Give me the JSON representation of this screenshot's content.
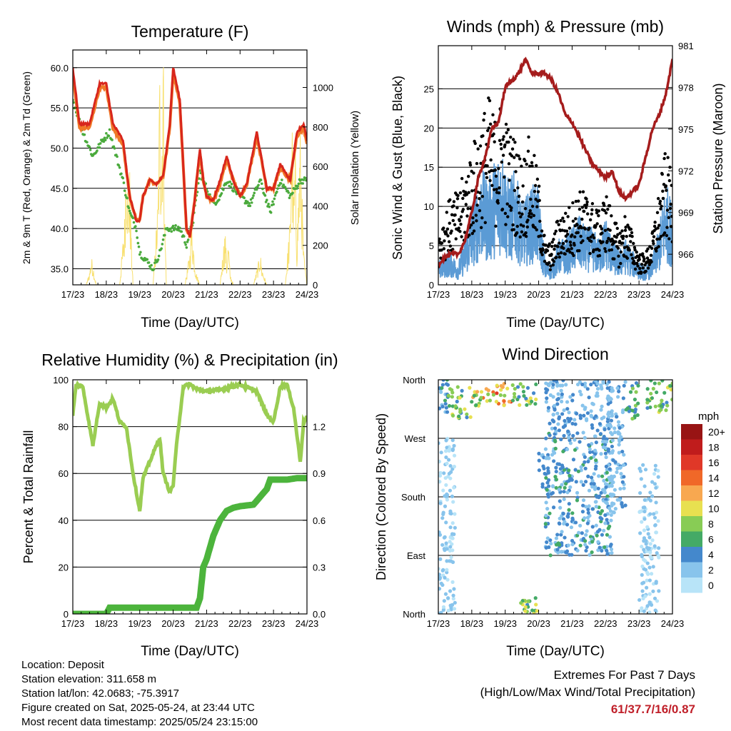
{
  "colors": {
    "temp_2m": "#d8261c",
    "temp_9m": "#f07828",
    "dewpoint": "#4aaa3c",
    "solar": "#f8e070",
    "wind": "#5b9bd5",
    "gust": "#000000",
    "pressure": "#a51c1c",
    "rh": "#9acd52",
    "precip": "#4cb43c"
  },
  "x_ticks": [
    "17/23",
    "18/23",
    "19/23",
    "20/23",
    "21/23",
    "22/23",
    "23/23",
    "24/23"
  ],
  "chart_data": [
    {
      "type": "line",
      "id": "temperature",
      "title": "Temperature (F)",
      "xlabel": "Time (Day/UTC)",
      "ylabel": "2m & 9m T (Red, Orange) & 2m Td (Green)",
      "y2label": "Solar Insolation (Yellow)",
      "ylim": [
        33,
        62.2
      ],
      "y_ticks": [
        "35.0",
        "40.0",
        "45.0",
        "50.0",
        "55.0",
        "60.0"
      ],
      "y2lim": [
        0,
        1190
      ],
      "y2_ticks": [
        "0",
        "200",
        "400",
        "600",
        "800",
        "1000"
      ],
      "grid": true,
      "series": [
        {
          "key": "temp_2m",
          "x": [
            0,
            0.2,
            0.5,
            0.8,
            1.0,
            1.2,
            1.5,
            1.7,
            1.9,
            2.0,
            2.1,
            2.3,
            2.5,
            2.7,
            2.9,
            3.0,
            3.2,
            3.4,
            3.5,
            3.6,
            3.8,
            3.9,
            4.0,
            4.2,
            4.4,
            4.6,
            4.8,
            5.0,
            5.2,
            5.5,
            5.8,
            6.0,
            6.2,
            6.5,
            6.7,
            6.9,
            7.0
          ],
          "y": [
            60,
            53,
            53,
            58,
            58,
            53,
            51,
            44,
            41,
            41,
            44,
            46,
            45.5,
            46.5,
            53,
            60,
            56,
            40,
            39,
            42,
            50,
            46,
            44,
            43.5,
            46,
            49,
            46,
            44,
            45.5,
            52,
            45,
            45,
            48,
            46,
            52,
            53,
            51
          ]
        },
        {
          "key": "temp_9m",
          "x": [
            0,
            0.2,
            0.5,
            0.8,
            1.0,
            1.2,
            1.5,
            1.7,
            1.9,
            2.0,
            2.1,
            2.3,
            2.5,
            2.7,
            2.9,
            3.0,
            3.2,
            3.4,
            3.5,
            3.6,
            3.8,
            3.9,
            4.0,
            4.2,
            4.4,
            4.6,
            4.8,
            5.0,
            5.2,
            5.5,
            5.8,
            6.0,
            6.2,
            6.5,
            6.7,
            6.9,
            7.0
          ],
          "y": [
            59,
            52.5,
            52.5,
            57.5,
            57.5,
            52.5,
            50.5,
            44,
            41,
            41,
            44,
            46,
            45.5,
            46.5,
            52.5,
            59.5,
            55.5,
            40,
            39,
            42,
            49.5,
            46,
            44,
            43.5,
            45.5,
            48.5,
            46,
            44,
            45.5,
            51.5,
            45,
            45,
            47.5,
            46,
            51.5,
            52.5,
            50.5
          ]
        },
        {
          "key": "dewpoint",
          "x": [
            0,
            0.3,
            0.6,
            0.9,
            1.1,
            1.3,
            1.5,
            1.7,
            1.9,
            2.0,
            2.2,
            2.4,
            2.6,
            2.8,
            3.0,
            3.2,
            3.4,
            3.6,
            3.8,
            4.0,
            4.2,
            4.4,
            4.6,
            4.8,
            5.0,
            5.3,
            5.6,
            5.9,
            6.2,
            6.5,
            6.8,
            7.0
          ],
          "y": [
            56,
            52,
            49,
            51,
            52,
            49,
            46,
            42,
            40,
            37,
            36,
            35,
            37,
            40,
            40,
            40,
            38,
            41,
            47,
            45,
            43,
            44,
            46,
            45,
            44,
            43,
            46,
            42,
            46,
            44,
            46,
            46
          ]
        },
        {
          "key": "solar",
          "x": [
            0,
            0.4,
            0.5,
            0.55,
            0.6,
            0.65,
            0.7,
            0.8,
            1.4,
            1.55,
            1.6,
            1.65,
            1.7,
            1.75,
            1.8,
            1.9,
            2.4,
            2.55,
            2.6,
            2.65,
            2.7,
            2.75,
            2.8,
            2.9,
            3.35,
            3.5,
            3.55,
            3.6,
            3.65,
            3.7,
            3.8,
            4.4,
            4.55,
            4.6,
            4.65,
            4.7,
            4.8,
            5.4,
            5.55,
            5.6,
            5.65,
            5.7,
            5.8,
            6.35,
            6.5,
            6.55,
            6.6,
            6.65,
            6.7,
            6.8,
            6.9,
            7.0
          ],
          "y": [
            0,
            0,
            60,
            120,
            100,
            40,
            0,
            0,
            0,
            300,
            700,
            400,
            500,
            200,
            0,
            0,
            0,
            400,
            1000,
            600,
            1150,
            300,
            0,
            0,
            0,
            150,
            300,
            200,
            100,
            50,
            0,
            0,
            250,
            100,
            200,
            50,
            0,
            0,
            100,
            150,
            80,
            50,
            0,
            0,
            300,
            800,
            400,
            600,
            200,
            700,
            150,
            0
          ]
        }
      ]
    },
    {
      "type": "line",
      "id": "winds",
      "title": "Winds (mph) & Pressure (mb)",
      "xlabel": "Time (Day/UTC)",
      "ylabel": "Sonic Wind & Gust (Blue, Black)",
      "y2label": "Station Pressure (Maroon)",
      "ylim": [
        0,
        30.5
      ],
      "y_ticks": [
        "0",
        "5",
        "10",
        "15",
        "20",
        "25"
      ],
      "y2lim": [
        963.8,
        981
      ],
      "y2_ticks": [
        "966",
        "969",
        "972",
        "975",
        "978",
        "981"
      ],
      "grid": true,
      "series": [
        {
          "key": "wind",
          "x": [
            0,
            0.3,
            0.6,
            0.9,
            1.1,
            1.3,
            1.5,
            1.7,
            1.9,
            2.1,
            2.3,
            2.5,
            2.7,
            2.9,
            3.0,
            3.2,
            3.4,
            3.6,
            3.8,
            4.0,
            4.2,
            4.4,
            4.6,
            4.8,
            5.0,
            5.2,
            5.4,
            5.6,
            5.8,
            6.0,
            6.2,
            6.4,
            6.6,
            6.8,
            7.0
          ],
          "y": [
            2,
            3,
            2,
            5,
            8,
            10,
            9,
            11,
            12,
            9,
            10,
            7,
            8,
            9,
            8,
            2,
            2,
            4,
            4,
            5,
            6,
            5,
            5,
            4,
            6,
            4,
            3,
            4,
            3,
            2,
            1.5,
            2.5,
            5,
            9,
            7
          ]
        },
        {
          "key": "gust",
          "x": [
            0,
            0.3,
            0.6,
            0.9,
            1.1,
            1.3,
            1.5,
            1.7,
            1.9,
            2.1,
            2.3,
            2.5,
            2.7,
            2.9,
            3.0,
            3.2,
            3.4,
            3.6,
            3.8,
            4.0,
            4.2,
            4.4,
            4.6,
            4.8,
            5.0,
            5.2,
            5.4,
            5.6,
            5.8,
            6.0,
            6.2,
            6.4,
            6.6,
            6.8,
            7.0
          ],
          "y": [
            5,
            8,
            9,
            12,
            14,
            16,
            18,
            16,
            18,
            15,
            14,
            12,
            14,
            12,
            10,
            4,
            4,
            7,
            7,
            8,
            9,
            9,
            8,
            7,
            9,
            7,
            5,
            7,
            5,
            3,
            3,
            5,
            9,
            13,
            10
          ]
        },
        {
          "key": "pressure",
          "x": [
            0,
            0.2,
            0.4,
            0.6,
            0.8,
            1.0,
            1.2,
            1.4,
            1.6,
            1.8,
            2.0,
            2.2,
            2.4,
            2.6,
            2.8,
            3.0,
            3.2,
            3.4,
            3.6,
            3.8,
            4.0,
            4.2,
            4.4,
            4.6,
            4.8,
            5.0,
            5.2,
            5.4,
            5.6,
            5.8,
            6.0,
            6.2,
            6.4,
            6.6,
            6.8,
            7.0
          ],
          "y": [
            965.3,
            965.8,
            966,
            966,
            967,
            969,
            971.5,
            973,
            975,
            975.5,
            978,
            978.5,
            979,
            980,
            979,
            979,
            979,
            978.5,
            977.5,
            976,
            975.5,
            974.5,
            973.5,
            972.5,
            972,
            971.5,
            972,
            970.5,
            970,
            970.5,
            971,
            973,
            975,
            976,
            977.5,
            980
          ]
        }
      ]
    },
    {
      "type": "line",
      "id": "humidity",
      "title": "Relative Humidity (%) & Precipitation (in)",
      "xlabel": "Time (Day/UTC)",
      "ylabel": "Percent & Total Rainfall",
      "ylim": [
        0,
        100
      ],
      "y_ticks": [
        "0",
        "20",
        "40",
        "60",
        "80",
        "100"
      ],
      "y2lim": [
        0,
        1.5
      ],
      "y2_ticks": [
        "0.0",
        "0.3",
        "0.6",
        "0.9",
        "1.2"
      ],
      "grid": true,
      "series": [
        {
          "key": "rh",
          "x": [
            0,
            0.1,
            0.3,
            0.5,
            0.6,
            0.8,
            1.0,
            1.2,
            1.4,
            1.6,
            1.8,
            2.0,
            2.1,
            2.3,
            2.5,
            2.6,
            2.7,
            2.9,
            3.0,
            3.1,
            3.3,
            3.5,
            3.7,
            4.0,
            4.5,
            5.0,
            5.5,
            5.8,
            6.0,
            6.2,
            6.4,
            6.6,
            6.8,
            6.9,
            7.0
          ],
          "y": [
            85,
            98,
            97,
            80,
            72,
            90,
            88,
            92,
            82,
            80,
            60,
            44,
            58,
            65,
            72,
            75,
            60,
            52,
            55,
            72,
            97,
            98,
            96,
            95,
            96,
            98,
            95,
            85,
            82,
            97,
            98,
            88,
            65,
            82,
            84
          ]
        },
        {
          "key": "precip",
          "x": [
            0,
            1.0,
            1.1,
            2.0,
            3.0,
            3.7,
            3.8,
            3.9,
            4.0,
            4.2,
            4.4,
            4.6,
            4.8,
            5.0,
            5.4,
            5.6,
            5.8,
            5.9,
            6.0,
            6.4,
            6.7,
            6.8,
            7.0
          ],
          "y": [
            0,
            0,
            0.04,
            0.04,
            0.04,
            0.04,
            0.1,
            0.3,
            0.35,
            0.5,
            0.6,
            0.66,
            0.68,
            0.69,
            0.7,
            0.75,
            0.8,
            0.86,
            0.86,
            0.86,
            0.87,
            0.87,
            0.87
          ]
        }
      ]
    },
    {
      "type": "scatter",
      "id": "direction",
      "title": "Wind Direction",
      "xlabel": "Time (Day/UTC)",
      "ylabel": "Direction (Colored By Speed)",
      "ylim": [
        0,
        360
      ],
      "y_ticks": [
        "North",
        "East",
        "South",
        "West",
        "North"
      ],
      "legend": {
        "title": "mph",
        "labels": [
          "0",
          "2",
          "4",
          "6",
          "8",
          "10",
          "12",
          "14",
          "16",
          "18",
          "20+"
        ],
        "colors": [
          "#b8e4f8",
          "#88c4ec",
          "#4488cc",
          "#44aa66",
          "#88cc55",
          "#e8e050",
          "#f8a850",
          "#f06828",
          "#e03828",
          "#c01c1c",
          "#981414"
        ],
        "placement": "right"
      },
      "clusters": [
        {
          "x": [
            0,
            0.3
          ],
          "dir": [
            310,
            360
          ],
          "spd": [
            2,
            6
          ]
        },
        {
          "x": [
            0.3,
            1.0
          ],
          "dir": [
            300,
            350
          ],
          "spd": [
            4,
            10
          ]
        },
        {
          "x": [
            1.0,
            1.6
          ],
          "dir": [
            320,
            350
          ],
          "spd": [
            6,
            14
          ]
        },
        {
          "x": [
            1.6,
            2.2
          ],
          "dir": [
            320,
            355
          ],
          "spd": [
            8,
            16
          ]
        },
        {
          "x": [
            2.2,
            3.0
          ],
          "dir": [
            320,
            355
          ],
          "spd": [
            4,
            10
          ]
        },
        {
          "x": [
            0,
            0.5
          ],
          "dir": [
            0,
            270
          ],
          "spd": [
            0,
            3
          ]
        },
        {
          "x": [
            3.0,
            3.3
          ],
          "dir": [
            190,
            250
          ],
          "spd": [
            2,
            5
          ]
        },
        {
          "x": [
            3.2,
            5.2
          ],
          "dir": [
            90,
            280
          ],
          "spd": [
            1,
            6
          ]
        },
        {
          "x": [
            3.2,
            5.2
          ],
          "dir": [
            280,
            360
          ],
          "spd": [
            1,
            5
          ]
        },
        {
          "x": [
            5.0,
            5.6
          ],
          "dir": [
            150,
            360
          ],
          "spd": [
            1,
            4
          ]
        },
        {
          "x": [
            5.6,
            6.0
          ],
          "dir": [
            300,
            360
          ],
          "spd": [
            3,
            8
          ]
        },
        {
          "x": [
            6.0,
            6.6
          ],
          "dir": [
            0,
            230
          ],
          "spd": [
            0,
            3
          ]
        },
        {
          "x": [
            6.2,
            7.0
          ],
          "dir": [
            310,
            360
          ],
          "spd": [
            4,
            10
          ]
        },
        {
          "x": [
            2.4,
            3.0
          ],
          "dir": [
            0,
            25
          ],
          "spd": [
            4,
            10
          ]
        }
      ]
    }
  ],
  "info": {
    "location": "Location: Deposit",
    "elevation": "Station elevation: 311.658 m",
    "latlon": "Station lat/lon: 42.0683; -75.3917",
    "created": "Figure created on Sat, 2025-05-24, at 23:44 UTC",
    "recent": "Most recent data timestamp: 2025/05/24 23:15:00"
  },
  "extremes": {
    "title": "Extremes For Past 7 Days",
    "subtitle": "(High/Low/Max Wind/Total Precipitation)",
    "values": "61/37.7/16/0.87"
  }
}
